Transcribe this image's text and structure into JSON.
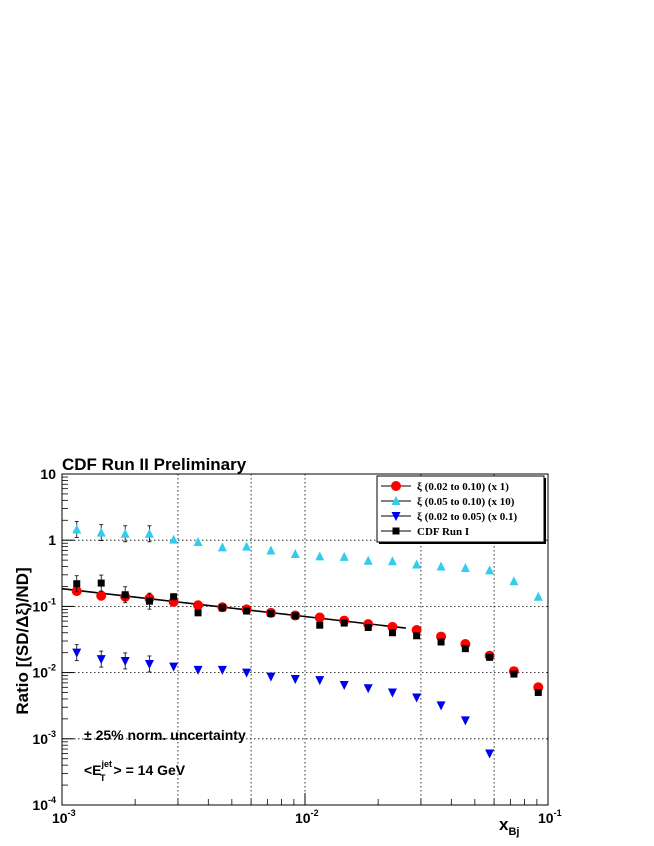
{
  "chart_data": {
    "type": "scatter",
    "title": "CDF Run II Preliminary",
    "ylabel": "Ratio [(SD/Δξ)/ND]",
    "xlabel_main": "x",
    "xlabel_sub": "Bj",
    "x_scale": "log",
    "y_scale": "log",
    "xlim": [
      0.001,
      0.1
    ],
    "ylim": [
      0.0001,
      10
    ],
    "grid": true,
    "legend_position": "top-right",
    "x_ticks": [
      {
        "base": "10",
        "exp": "-3",
        "value": 0.001
      },
      {
        "base": "10",
        "exp": "-2",
        "value": 0.01
      },
      {
        "base": "10",
        "exp": "-1",
        "value": 0.1
      }
    ],
    "y_ticks": [
      {
        "base": "10",
        "exp": "",
        "value": 10
      },
      {
        "base": "1",
        "exp": "",
        "value": 1
      },
      {
        "base": "10",
        "exp": "-1",
        "value": 0.1
      },
      {
        "base": "10",
        "exp": "-2",
        "value": 0.01
      },
      {
        "base": "10",
        "exp": "-3",
        "value": 0.001
      },
      {
        "base": "10",
        "exp": "-4",
        "value": 0.0001
      }
    ],
    "series": [
      {
        "name": "ξ (0.02 to 0.10) (x 1)",
        "marker": "circle",
        "color": "#ff0000",
        "points": [
          [
            0.00115,
            0.17
          ],
          [
            0.00145,
            0.145
          ],
          [
            0.00182,
            0.14
          ],
          [
            0.00229,
            0.132
          ],
          [
            0.00288,
            0.117
          ],
          [
            0.00363,
            0.104
          ],
          [
            0.00457,
            0.097
          ],
          [
            0.00575,
            0.09
          ],
          [
            0.00724,
            0.08
          ],
          [
            0.00912,
            0.073
          ],
          [
            0.0115,
            0.068
          ],
          [
            0.0145,
            0.061
          ],
          [
            0.0182,
            0.054
          ],
          [
            0.0229,
            0.049
          ],
          [
            0.0288,
            0.044
          ],
          [
            0.0363,
            0.035
          ],
          [
            0.0457,
            0.027
          ],
          [
            0.0575,
            0.018
          ],
          [
            0.0724,
            0.0105
          ],
          [
            0.0912,
            0.006
          ]
        ]
      },
      {
        "name": "ξ (0.05 to 0.10) (x 10)",
        "marker": "triangle-up",
        "color": "#33ccee",
        "points": [
          [
            0.00115,
            1.45
          ],
          [
            0.00145,
            1.3
          ],
          [
            0.00182,
            1.25
          ],
          [
            0.00229,
            1.25
          ],
          [
            0.00288,
            1.02
          ],
          [
            0.00363,
            0.94
          ],
          [
            0.00457,
            0.78
          ],
          [
            0.00575,
            0.8
          ],
          [
            0.00724,
            0.7
          ],
          [
            0.00912,
            0.62
          ],
          [
            0.0115,
            0.57
          ],
          [
            0.0145,
            0.56
          ],
          [
            0.0182,
            0.49
          ],
          [
            0.0229,
            0.48
          ],
          [
            0.0288,
            0.43
          ],
          [
            0.0363,
            0.4
          ],
          [
            0.0457,
            0.38
          ],
          [
            0.0575,
            0.35
          ],
          [
            0.0724,
            0.24
          ],
          [
            0.0912,
            0.14
          ]
        ]
      },
      {
        "name": "ξ (0.02 to 0.05) (x 0.1)",
        "marker": "triangle-down",
        "color": "#0000ee",
        "points": [
          [
            0.00115,
            0.02
          ],
          [
            0.00145,
            0.016
          ],
          [
            0.00182,
            0.015
          ],
          [
            0.00229,
            0.0135
          ],
          [
            0.00288,
            0.0123
          ],
          [
            0.00363,
            0.011
          ],
          [
            0.00457,
            0.011
          ],
          [
            0.00575,
            0.01
          ],
          [
            0.00724,
            0.0087
          ],
          [
            0.00912,
            0.008
          ],
          [
            0.0115,
            0.0077
          ],
          [
            0.0145,
            0.0065
          ],
          [
            0.0182,
            0.0058
          ],
          [
            0.0229,
            0.005
          ],
          [
            0.0288,
            0.0042
          ],
          [
            0.0363,
            0.0032
          ],
          [
            0.0457,
            0.0019
          ],
          [
            0.0575,
            0.0006
          ]
        ]
      },
      {
        "name": "CDF Run I",
        "marker": "square",
        "color": "#000000",
        "points": [
          [
            0.00115,
            0.22
          ],
          [
            0.00145,
            0.225
          ],
          [
            0.00182,
            0.15
          ],
          [
            0.00229,
            0.12
          ],
          [
            0.00288,
            0.14
          ],
          [
            0.00363,
            0.08
          ],
          [
            0.00457,
            0.095
          ],
          [
            0.00575,
            0.085
          ],
          [
            0.00724,
            0.078
          ],
          [
            0.00912,
            0.072
          ],
          [
            0.0115,
            0.052
          ],
          [
            0.0145,
            0.056
          ],
          [
            0.0182,
            0.048
          ],
          [
            0.0229,
            0.04
          ],
          [
            0.0288,
            0.036
          ],
          [
            0.0363,
            0.029
          ],
          [
            0.0457,
            0.023
          ],
          [
            0.0575,
            0.017
          ],
          [
            0.0724,
            0.0095
          ],
          [
            0.0912,
            0.005
          ]
        ]
      }
    ],
    "fit_line": {
      "x": [
        0.001,
        0.026
      ],
      "y": [
        0.185,
        0.047
      ]
    },
    "annotations": {
      "norm": "± 25% norm. uncertainty",
      "et_pre": "<E",
      "et_sup": "jet",
      "et_sub": "T",
      "et_post": "> = 14 GeV"
    }
  }
}
